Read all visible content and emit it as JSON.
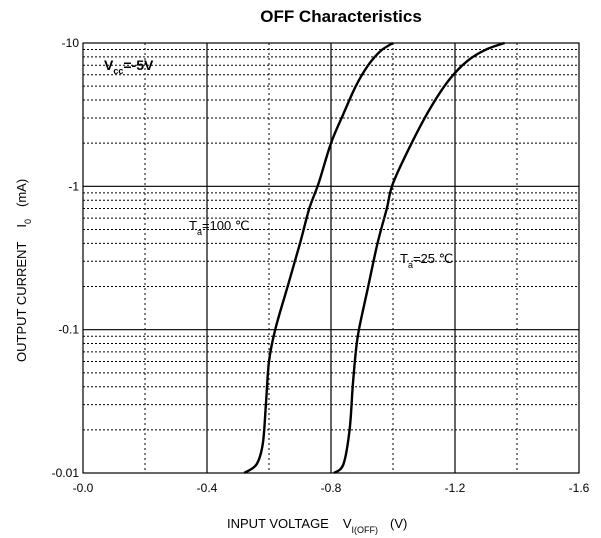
{
  "chart_data": {
    "type": "line",
    "title": "OFF Characteristics",
    "xlabel": {
      "main": "INPUT VOLTAGE",
      "symbol": "V",
      "subscript": "I(OFF)",
      "unit": "(V)"
    },
    "ylabel": {
      "main": "OUTPUT CURRENT",
      "symbol": "I",
      "subscript": "0",
      "unit": "(mA)"
    },
    "x_scale": "linear",
    "y_scale": "log",
    "xlim": [
      0.0,
      -1.6
    ],
    "ylim": [
      -0.01,
      -10
    ],
    "x_ticks": [
      "-0.0",
      "-0.4",
      "-0.8",
      "-1.2",
      "-1.6"
    ],
    "y_ticks": [
      "-0.01",
      "-0.1",
      "-1",
      "-10"
    ],
    "grid": true,
    "condition": {
      "prefix": "V",
      "subscript": "cc",
      "value": "=-5V"
    },
    "series": [
      {
        "annotation": {
          "prefix": "T",
          "subscript": "a",
          "value": "=100 ℃"
        },
        "points": [
          [
            -0.52,
            -0.01
          ],
          [
            -0.56,
            -0.0115
          ],
          [
            -0.58,
            -0.016
          ],
          [
            -0.59,
            -0.03
          ],
          [
            -0.6,
            -0.06
          ],
          [
            -0.62,
            -0.1
          ],
          [
            -0.66,
            -0.2
          ],
          [
            -0.7,
            -0.4
          ],
          [
            -0.73,
            -0.7
          ],
          [
            -0.76,
            -1.05
          ],
          [
            -0.8,
            -2.0
          ],
          [
            -0.84,
            -3.2
          ],
          [
            -0.88,
            -5.0
          ],
          [
            -0.92,
            -7.0
          ],
          [
            -0.96,
            -8.8
          ],
          [
            -1.0,
            -10.0
          ]
        ]
      },
      {
        "annotation": {
          "prefix": "T",
          "subscript": "a",
          "value": "=25 ℃"
        },
        "points": [
          [
            -0.81,
            -0.01
          ],
          [
            -0.84,
            -0.0115
          ],
          [
            -0.86,
            -0.02
          ],
          [
            -0.87,
            -0.04
          ],
          [
            -0.88,
            -0.07
          ],
          [
            -0.89,
            -0.1
          ],
          [
            -0.92,
            -0.2
          ],
          [
            -0.95,
            -0.4
          ],
          [
            -0.98,
            -0.7
          ],
          [
            -1.0,
            -1.05
          ],
          [
            -1.06,
            -2.0
          ],
          [
            -1.12,
            -3.5
          ],
          [
            -1.18,
            -5.5
          ],
          [
            -1.24,
            -7.5
          ],
          [
            -1.3,
            -9.0
          ],
          [
            -1.36,
            -10.0
          ]
        ]
      }
    ]
  },
  "colors": {
    "line": "#000000",
    "grid": "#000000",
    "background": "#ffffff"
  }
}
